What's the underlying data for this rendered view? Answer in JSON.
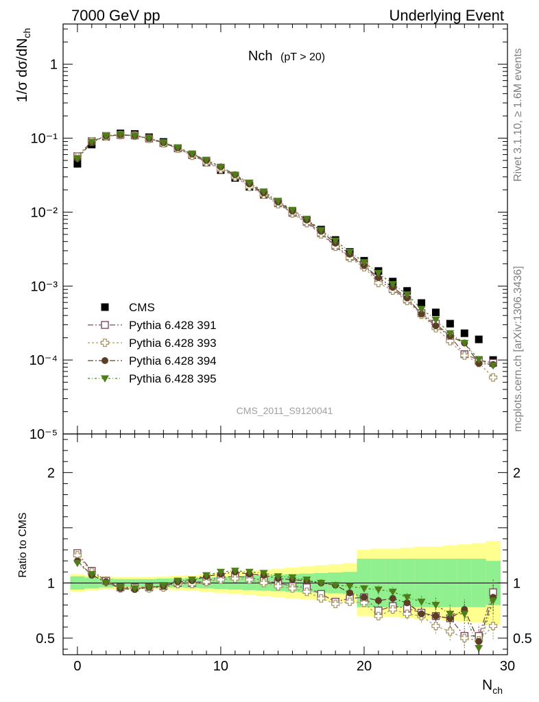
{
  "header": {
    "left": "7000 GeV pp",
    "right": "Underlying Event"
  },
  "side_text": {
    "rivet": "Rivet 3.1.10, ≥ 1.6M events",
    "mcplots": "mcplots.cern.ch [arXiv:1306.3436]"
  },
  "plot_title": {
    "main": "Nch",
    "sub": "(pT > 20)"
  },
  "watermark": "CMS_2011_S9120041",
  "ratio_ylabel": "Ratio to CMS",
  "colors": {
    "data": "#000000",
    "s391": "#7b4a61",
    "s393": "#a89868",
    "s394": "#5a3e26",
    "s395": "#4f7d19",
    "band_inner": "#90f090",
    "band_outer": "#ffff90"
  },
  "chart_data": {
    "type": "scatter",
    "main_panel": {
      "ylabel": "1/σ dσ/dN_ch",
      "yscale": "log",
      "ylim": [
        1e-05,
        3.5
      ],
      "y_ticks": [
        {
          "value": 1,
          "label": "1"
        },
        {
          "value": 0.1,
          "label": "10⁻¹"
        },
        {
          "value": 0.01,
          "label": "10⁻²"
        },
        {
          "value": 0.001,
          "label": "10⁻³"
        },
        {
          "value": 0.0001,
          "label": "10⁻⁴"
        },
        {
          "value": 1e-05,
          "label": "10⁻⁵"
        }
      ]
    },
    "ratio_panel": {
      "ylabel": "Ratio to CMS",
      "ylim": [
        0.35,
        2.35
      ],
      "y_ticks": [
        {
          "value": 0.5,
          "label": "0.5"
        },
        {
          "value": 1,
          "label": "1"
        },
        {
          "value": 2,
          "label": "2"
        }
      ]
    },
    "xlabel": "N_ch",
    "xlim": [
      -1,
      30
    ],
    "x_ticks": [
      {
        "value": 0,
        "label": "0"
      },
      {
        "value": 10,
        "label": "10"
      },
      {
        "value": 20,
        "label": "20"
      },
      {
        "value": 30,
        "label": "30"
      }
    ],
    "x": [
      0,
      1,
      2,
      3,
      4,
      5,
      6,
      7,
      8,
      9,
      10,
      11,
      12,
      13,
      14,
      15,
      16,
      17,
      18,
      19,
      20,
      21,
      22,
      23,
      24,
      25,
      26,
      27,
      28,
      29
    ],
    "data": {
      "name": "CMS",
      "values": [
        0.045,
        0.082,
        0.105,
        0.116,
        0.114,
        0.103,
        0.089,
        0.073,
        0.059,
        0.047,
        0.037,
        0.029,
        0.022,
        0.0172,
        0.0132,
        0.0101,
        0.0077,
        0.0058,
        0.0042,
        0.0029,
        0.0022,
        0.0016,
        0.00115,
        0.00086,
        0.00059,
        0.00044,
        0.00031,
        0.00023,
        0.00019,
        0.0001
      ],
      "band_inner": [
        0.06,
        0.05,
        0.04,
        0.035,
        0.035,
        0.035,
        0.04,
        0.04,
        0.045,
        0.05,
        0.055,
        0.06,
        0.065,
        0.07,
        0.075,
        0.08,
        0.085,
        0.09,
        0.095,
        0.1,
        0.22,
        0.22,
        0.22,
        0.22,
        0.22,
        0.22,
        0.22,
        0.22,
        0.22,
        0.2
      ],
      "band_outer": [
        0.08,
        0.07,
        0.06,
        0.055,
        0.055,
        0.055,
        0.06,
        0.065,
        0.07,
        0.08,
        0.09,
        0.1,
        0.11,
        0.12,
        0.13,
        0.14,
        0.15,
        0.16,
        0.17,
        0.18,
        0.3,
        0.31,
        0.31,
        0.32,
        0.33,
        0.33,
        0.34,
        0.35,
        0.36,
        0.38
      ]
    },
    "series": [
      {
        "name": "Pythia 6.428 391",
        "marker": "open-square",
        "color_key": "s391",
        "values": [
          0.057,
          0.091,
          0.107,
          0.111,
          0.109,
          0.099,
          0.086,
          0.073,
          0.059,
          0.048,
          0.039,
          0.031,
          0.023,
          0.0176,
          0.0132,
          0.0098,
          0.0074,
          0.0052,
          0.0035,
          0.0025,
          0.0019,
          0.0012,
          0.00091,
          0.00066,
          0.00043,
          0.00031,
          0.00021,
          0.00012,
          0.0001,
          9.15e-05
        ],
        "ratio": [
          1.27,
          1.11,
          1.02,
          0.96,
          0.96,
          0.96,
          0.97,
          1.0,
          1.0,
          1.02,
          1.05,
          1.06,
          1.05,
          1.02,
          1.0,
          0.97,
          0.96,
          0.9,
          0.83,
          0.86,
          0.87,
          0.75,
          0.79,
          0.77,
          0.73,
          0.7,
          0.68,
          0.52,
          0.52,
          0.915
        ],
        "ratio_err": [
          0.02,
          0.01,
          0.01,
          0.01,
          0.01,
          0.01,
          0.01,
          0.01,
          0.01,
          0.01,
          0.01,
          0.01,
          0.01,
          0.01,
          0.015,
          0.015,
          0.02,
          0.02,
          0.025,
          0.03,
          0.03,
          0.04,
          0.04,
          0.05,
          0.06,
          0.07,
          0.08,
          0.09,
          0.1,
          0.12
        ]
      },
      {
        "name": "Pythia 6.428 393",
        "marker": "open-cross",
        "color_key": "s393",
        "values": [
          0.056,
          0.09,
          0.106,
          0.11,
          0.108,
          0.098,
          0.085,
          0.072,
          0.058,
          0.047,
          0.038,
          0.03,
          0.022,
          0.0172,
          0.0128,
          0.0096,
          0.0071,
          0.005,
          0.0034,
          0.0024,
          0.0018,
          0.0011,
          0.00087,
          0.00063,
          0.00041,
          0.00027,
          0.00018,
          0.000115,
          9.15e-05,
          5.8e-05
        ],
        "ratio": [
          1.25,
          1.1,
          1.01,
          0.95,
          0.95,
          0.95,
          0.96,
          0.99,
          0.99,
          1.01,
          1.03,
          1.04,
          1.03,
          1.0,
          0.97,
          0.95,
          0.92,
          0.86,
          0.81,
          0.83,
          0.82,
          0.7,
          0.76,
          0.72,
          0.7,
          0.61,
          0.56,
          0.5,
          0.48,
          0.61
        ],
        "ratio_err": [
          0.02,
          0.01,
          0.01,
          0.01,
          0.01,
          0.01,
          0.01,
          0.01,
          0.01,
          0.01,
          0.01,
          0.01,
          0.01,
          0.01,
          0.015,
          0.015,
          0.02,
          0.02,
          0.025,
          0.03,
          0.03,
          0.04,
          0.04,
          0.05,
          0.06,
          0.07,
          0.08,
          0.09,
          0.1,
          0.12
        ]
      },
      {
        "name": "Pythia 6.428 394",
        "marker": "filled-circle",
        "color_key": "s394",
        "values": [
          0.053,
          0.088,
          0.107,
          0.111,
          0.108,
          0.099,
          0.087,
          0.074,
          0.061,
          0.05,
          0.041,
          0.032,
          0.024,
          0.0182,
          0.0137,
          0.0103,
          0.0078,
          0.0055,
          0.0038,
          0.0027,
          0.0019,
          0.0013,
          0.00096,
          0.00069,
          0.00042,
          0.00029,
          0.00021,
          0.00017,
          9e-05,
          8.7e-05
        ],
        "ratio": [
          1.2,
          1.07,
          1.01,
          0.95,
          0.94,
          0.96,
          0.97,
          1.01,
          1.02,
          1.06,
          1.08,
          1.1,
          1.08,
          1.07,
          1.04,
          1.03,
          1.02,
          1.0,
          0.98,
          0.91,
          0.87,
          0.84,
          0.86,
          0.82,
          0.72,
          0.7,
          0.68,
          0.76,
          0.47,
          0.87
        ],
        "ratio_err": [
          0.02,
          0.01,
          0.01,
          0.01,
          0.01,
          0.01,
          0.01,
          0.01,
          0.01,
          0.01,
          0.01,
          0.01,
          0.01,
          0.01,
          0.015,
          0.015,
          0.02,
          0.02,
          0.025,
          0.03,
          0.03,
          0.04,
          0.04,
          0.05,
          0.06,
          0.07,
          0.08,
          0.09,
          0.1,
          0.12
        ]
      },
      {
        "name": "Pythia 6.428 395",
        "marker": "filled-triangle-down",
        "color_key": "s395",
        "values": [
          0.053,
          0.089,
          0.108,
          0.112,
          0.108,
          0.1,
          0.088,
          0.075,
          0.062,
          0.051,
          0.041,
          0.032,
          0.025,
          0.019,
          0.0142,
          0.0107,
          0.0081,
          0.0057,
          0.0041,
          0.0029,
          0.0021,
          0.0015,
          0.00106,
          0.00077,
          0.00049,
          0.00035,
          0.00023,
          0.00017,
          0.000102,
          8.4e-05
        ],
        "ratio": [
          1.18,
          1.08,
          1.0,
          0.96,
          0.95,
          0.96,
          0.98,
          1.02,
          1.03,
          1.07,
          1.1,
          1.11,
          1.1,
          1.09,
          1.06,
          1.05,
          1.03,
          1.0,
          0.98,
          0.97,
          0.95,
          0.94,
          0.92,
          0.87,
          0.83,
          0.8,
          0.72,
          0.72,
          0.41,
          0.84
        ],
        "ratio_err": [
          0.02,
          0.01,
          0.01,
          0.01,
          0.01,
          0.01,
          0.01,
          0.01,
          0.01,
          0.01,
          0.01,
          0.01,
          0.01,
          0.01,
          0.015,
          0.015,
          0.02,
          0.02,
          0.025,
          0.03,
          0.03,
          0.04,
          0.04,
          0.05,
          0.06,
          0.07,
          0.08,
          0.09,
          0.1,
          0.12
        ]
      }
    ],
    "legend": {
      "placement": "lower-left",
      "entries": [
        "CMS",
        "Pythia 6.428 391",
        "Pythia 6.428 393",
        "Pythia 6.428 394",
        "Pythia 6.428 395"
      ]
    }
  }
}
